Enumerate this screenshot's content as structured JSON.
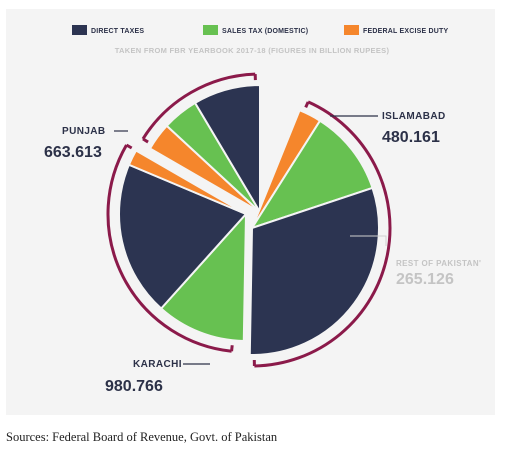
{
  "chart_data": {
    "type": "pie",
    "title": "",
    "subtitle": "TAKEN FROM FBR YEARBOOK 2017-18 (FIGURES IN BILLION RUPEES)",
    "legend": [
      {
        "name": "DIRECT TAXES",
        "color": "#2c3451"
      },
      {
        "name": "SALES TAX (DOMESTIC)",
        "color": "#67c151"
      },
      {
        "name": "FEDERAL EXCISE DUTY",
        "color": "#f5862c"
      }
    ],
    "legend_position": "top",
    "regions": [
      {
        "name": "PUNJAB",
        "total": "663.613",
        "values": {
          "DIRECT TAXES": 395,
          "SALES TAX (DOMESTIC)": 228,
          "FEDERAL EXCISE DUTY": 40
        }
      },
      {
        "name": "ISLAMABAD",
        "total": "480.161",
        "values": {
          "DIRECT TAXES": 246,
          "SALES TAX (DOMESTIC)": 132,
          "FEDERAL EXCISE DUTY": 102
        }
      },
      {
        "name": "REST OF PAKISTAN",
        "total": "265.126",
        "values": {
          "DIRECT TAXES": 0,
          "SALES TAX (DOMESTIC)": 0,
          "FEDERAL EXCISE DUTY": 0
        }
      },
      {
        "name": "KARACHI",
        "total": "980.766",
        "values": {
          "DIRECT TAXES": 675,
          "SALES TAX (DOMESTIC)": 242,
          "FEDERAL EXCISE DUTY": 64
        }
      }
    ]
  },
  "labels": {
    "punjab_name": "PUNJAB",
    "punjab_value": "663.613",
    "islamabad_name": "ISLAMABAD",
    "islamabad_value": "480.161",
    "rest_name": "REST OF PAKISTAN'",
    "rest_value": "265.126",
    "karachi_name": "KARACHI",
    "karachi_value": "980.766"
  },
  "source": "Sources: Federal Board of Revenue, Govt. of Pakistan",
  "colors": {
    "accent_bracket": "#8b1a4a",
    "muted": "#c4c4c4",
    "card_bg": "#f4f4f4"
  }
}
